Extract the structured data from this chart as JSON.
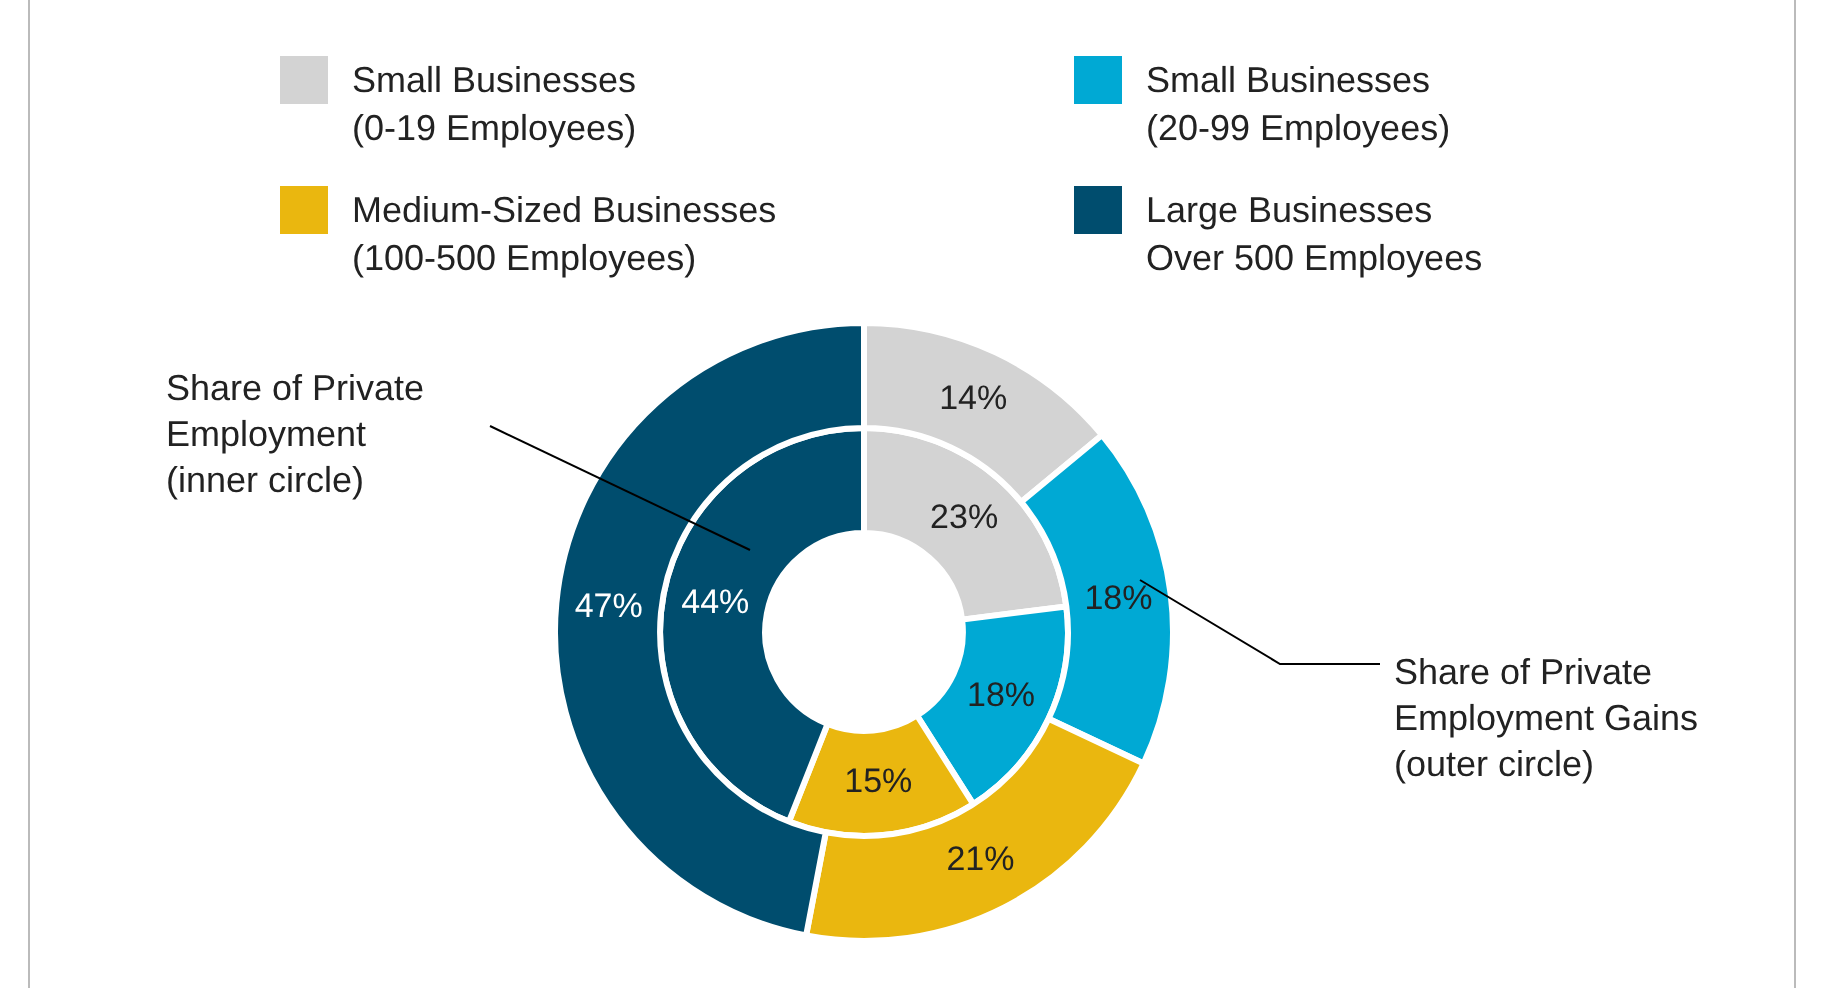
{
  "chart_data": {
    "type": "donut",
    "categories": [
      "Small Businesses\n(0-19 Employees)",
      "Small Businesses\n(20-99 Employees)",
      "Medium-Sized Businesses\n(100-500 Employees)",
      "Large Businesses\nOver 500 Employees"
    ],
    "colors": [
      "#d3d3d3",
      "#00a9d4",
      "#eab70f",
      "#004d6e"
    ],
    "series": [
      {
        "values": [
          14,
          18,
          21,
          47
        ],
        "value_labels": [
          "14%",
          "18%",
          "21%",
          "47%"
        ]
      },
      {
        "values": [
          23,
          18,
          15,
          44
        ],
        "value_labels": [
          "23%",
          "18%",
          "15%",
          "44%"
        ]
      }
    ],
    "legend": "top",
    "annotations": [
      "Share of Private\nEmployment\n(inner circle)",
      "Share of Private\nEmployment Gains\n(outer circle)"
    ]
  }
}
